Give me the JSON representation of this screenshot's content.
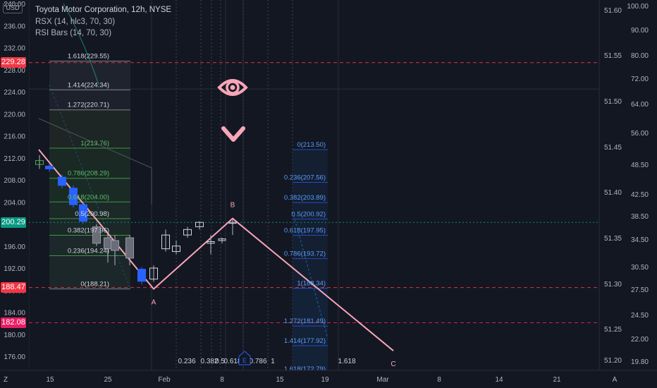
{
  "legend": {
    "title": "Toyota Motor Corporation, 12h, NYSE",
    "line2": "RSX (14, hlc3, 70, 30)",
    "line3": "RSI Bars (14, 70, 30)"
  },
  "currency": "USD",
  "price_tags": [
    {
      "label": "229.28",
      "value": 229.28,
      "color": "#f23645"
    },
    {
      "label": "200.29",
      "value": 200.29,
      "color": "#089981"
    },
    {
      "label": "188.47",
      "value": 188.47,
      "color": "#f23645"
    },
    {
      "label": "182.08",
      "value": 182.08,
      "color": "#e91e63"
    }
  ],
  "chart_data": {
    "type": "candlestick",
    "title": "Toyota Motor Corporation, 12h, NYSE",
    "left_axis": {
      "ticks": [
        "240.00",
        "236.00",
        "232.00",
        "228.00",
        "224.00",
        "220.00",
        "216.00",
        "212.00",
        "208.00",
        "204.00",
        "200.00",
        "196.00",
        "192.00",
        "188.00",
        "184.00",
        "180.00",
        "176.00"
      ],
      "range": [
        175.0,
        240.5
      ]
    },
    "right_axis_inner": {
      "ticks": [
        "51.60",
        "51.55",
        "51.50",
        "51.45",
        "51.40",
        "51.35",
        "51.30",
        "51.25",
        "51.20"
      ],
      "range": [
        51.2,
        51.61
      ]
    },
    "right_axis_outer": {
      "ticks": [
        "100.00",
        "90.00",
        "80.00",
        "72.00",
        "64.00",
        "56.00",
        "48.50",
        "42.50",
        "38.50",
        "34.50",
        "30.50",
        "27.50",
        "24.50",
        "22.00",
        "19.80"
      ]
    },
    "x_ticks": [
      "Z",
      "15",
      "25",
      "Feb",
      "8",
      "15",
      "19",
      "Mar",
      "8",
      "14",
      "21",
      "A"
    ],
    "candles": [
      {
        "o": 211.5,
        "h": 212.5,
        "l": 210.0,
        "c": 210.8,
        "dir": "up"
      },
      {
        "o": 210.5,
        "h": 211.0,
        "l": 209.5,
        "c": 210.0,
        "dir": "down"
      },
      {
        "o": 208.5,
        "h": 209.0,
        "l": 206.5,
        "c": 207.0,
        "dir": "down"
      },
      {
        "o": 206.5,
        "h": 207.0,
        "l": 203.0,
        "c": 203.5,
        "dir": "down"
      },
      {
        "o": 203.5,
        "h": 204.0,
        "l": 200.0,
        "c": 200.5,
        "dir": "down"
      },
      {
        "o": 199.5,
        "h": 200.0,
        "l": 196.0,
        "c": 196.5,
        "dir": "down"
      },
      {
        "o": 197.5,
        "h": 198.5,
        "l": 193.0,
        "c": 195.5,
        "dir": "down"
      },
      {
        "o": 197.0,
        "h": 198.0,
        "l": 192.5,
        "c": 195.2,
        "dir": "down"
      },
      {
        "o": 197.5,
        "h": 198.0,
        "l": 192.5,
        "c": 193.8,
        "dir": "down"
      },
      {
        "o": 191.8,
        "h": 192.2,
        "l": 189.0,
        "c": 189.6,
        "dir": "down"
      },
      {
        "o": 190.0,
        "h": 192.5,
        "l": 189.5,
        "c": 192.0,
        "dir": "up"
      },
      {
        "o": 195.5,
        "h": 199.0,
        "l": 195.0,
        "c": 198.0,
        "dir": "up"
      },
      {
        "o": 195.0,
        "h": 197.0,
        "l": 194.5,
        "c": 196.0,
        "dir": "up"
      },
      {
        "o": 198.0,
        "h": 199.5,
        "l": 197.5,
        "c": 199.0,
        "dir": "up"
      },
      {
        "o": 199.5,
        "h": 200.5,
        "l": 199.0,
        "c": 200.3,
        "dir": "up"
      },
      {
        "o": 196.5,
        "h": 198.0,
        "l": 194.5,
        "c": 196.8,
        "dir": "up"
      },
      {
        "o": 197.0,
        "h": 197.5,
        "l": 196.5,
        "c": 197.3,
        "dir": "up"
      },
      {
        "o": 200.3,
        "h": 200.8,
        "l": 198.0,
        "c": 200.3,
        "dir": "up"
      }
    ],
    "fib_left": [
      {
        "label": "1.618(229.55)",
        "value": 229.55
      },
      {
        "label": "1.414(224.34)",
        "value": 224.34
      },
      {
        "label": "1.272(220.71)",
        "value": 220.71
      },
      {
        "label": "1(213.76)",
        "value": 213.76
      },
      {
        "label": "0.786(208.29)",
        "value": 208.29
      },
      {
        "label": "0.618(204.00)",
        "value": 204.0
      },
      {
        "label": "0.5(200.98)",
        "value": 200.98
      },
      {
        "label": "0.382(197.96)",
        "value": 197.96
      },
      {
        "label": "0.236(194.24)",
        "value": 194.24
      },
      {
        "label": "0(188.21)",
        "value": 188.21
      }
    ],
    "fib_right": [
      {
        "label": "0(213.50)",
        "value": 213.5
      },
      {
        "label": "0.236(207.56)",
        "value": 207.56
      },
      {
        "label": "0.382(203.89)",
        "value": 203.89
      },
      {
        "label": "0.5(200.92)",
        "value": 200.92
      },
      {
        "label": "0.618(197.95)",
        "value": 197.95
      },
      {
        "label": "0.786(193.72)",
        "value": 193.72
      },
      {
        "label": "1(188.34)",
        "value": 188.34
      },
      {
        "label": "1.272(181.49)",
        "value": 181.49
      },
      {
        "label": "1.414(177.92)",
        "value": 177.92
      },
      {
        "label": "1.618(172.79)",
        "value": 172.79
      }
    ],
    "time_fib_labels": [
      "0.236",
      "0.382",
      "0.5",
      "0.618",
      "0.786",
      "1",
      "1.618"
    ],
    "pattern_points": [
      {
        "label": "",
        "value": 213.5
      },
      {
        "label": "A",
        "value": 188.21
      },
      {
        "label": "B",
        "value": 201.0
      },
      {
        "label": "C",
        "value": 177.0
      }
    ],
    "event_marker": "E"
  }
}
